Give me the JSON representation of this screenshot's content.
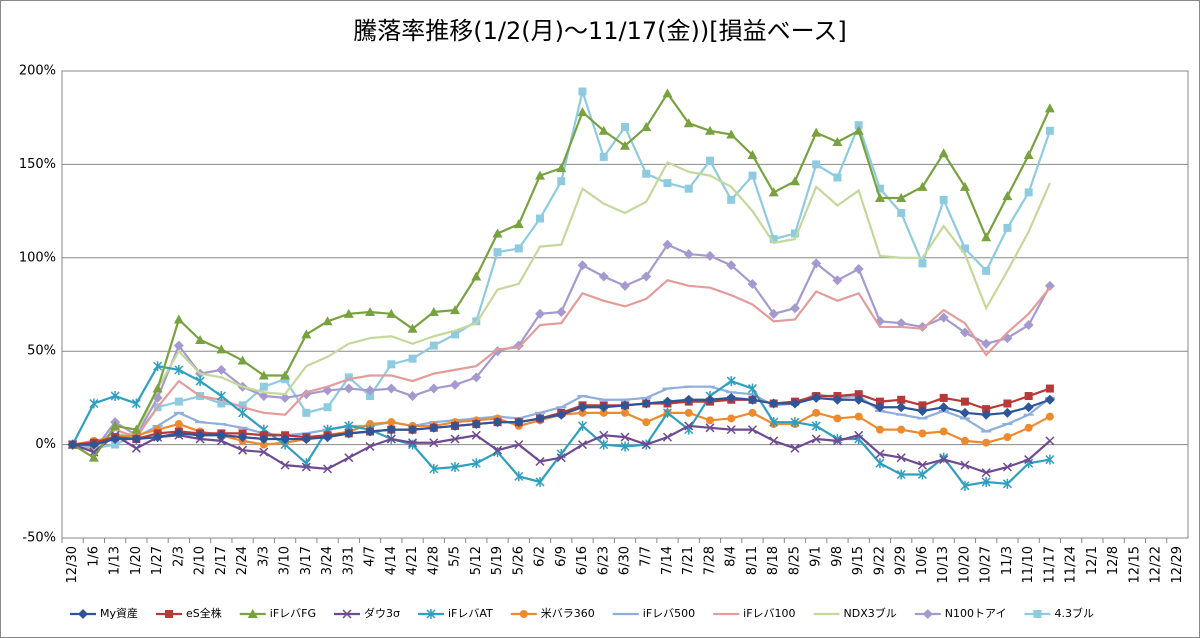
{
  "chart_data": {
    "type": "line",
    "title": "騰落率推移(1/2(月)～11/17(金))[損益ベース]",
    "categories": [
      "12/30",
      "1/6",
      "1/13",
      "1/20",
      "1/27",
      "2/3",
      "2/10",
      "2/17",
      "2/24",
      "3/3",
      "3/10",
      "3/17",
      "3/24",
      "3/31",
      "4/7",
      "4/14",
      "4/21",
      "4/28",
      "5/5",
      "5/12",
      "5/19",
      "5/26",
      "6/2",
      "6/9",
      "6/16",
      "6/23",
      "6/30",
      "7/7",
      "7/14",
      "7/21",
      "7/28",
      "8/4",
      "8/11",
      "8/18",
      "8/25",
      "9/1",
      "9/8",
      "9/15",
      "9/22",
      "9/29",
      "10/6",
      "10/13",
      "10/20",
      "10/27",
      "11/3",
      "11/10",
      "11/17",
      "11/24",
      "12/1",
      "12/8",
      "12/15",
      "12/22",
      "12/29"
    ],
    "ylim": [
      -50,
      200
    ],
    "yticks": [
      {
        "value": -50,
        "label": "-50%"
      },
      {
        "value": 0,
        "label": "0%"
      },
      {
        "value": 50,
        "label": "50%"
      },
      {
        "value": 100,
        "label": "100%"
      },
      {
        "value": 150,
        "label": "150%"
      },
      {
        "value": 200,
        "label": "200%"
      }
    ],
    "grid": true,
    "legend": "bottom",
    "series": [
      {
        "name": "My資産",
        "color": "#2e5597",
        "marker": "diamond",
        "values": [
          0,
          0,
          3,
          3,
          4,
          6,
          5,
          5,
          4,
          3,
          3,
          3,
          4,
          6,
          7,
          8,
          8,
          9,
          10,
          11,
          12,
          12,
          14,
          16,
          20,
          20,
          21,
          22,
          23,
          24,
          24,
          25,
          24,
          22,
          22,
          25,
          24,
          24,
          20,
          20,
          18,
          20,
          17,
          16,
          17,
          20,
          24,
          null,
          null,
          null,
          null,
          null,
          null
        ]
      },
      {
        "name": "eS全株",
        "color": "#b8393a",
        "marker": "square",
        "values": [
          0,
          1,
          4,
          3,
          6,
          7,
          6,
          6,
          6,
          5,
          5,
          4,
          5,
          6,
          7,
          8,
          8,
          9,
          10,
          11,
          12,
          12,
          14,
          17,
          21,
          21,
          21,
          22,
          22,
          23,
          23,
          24,
          24,
          22,
          23,
          26,
          26,
          27,
          23,
          24,
          21,
          25,
          23,
          19,
          22,
          26,
          30,
          null,
          null,
          null,
          null,
          null,
          null
        ]
      },
      {
        "name": "iFレバFG",
        "color": "#78a23f",
        "marker": "triangle",
        "values": [
          0,
          -7,
          10,
          8,
          30,
          67,
          56,
          51,
          45,
          37,
          37,
          59,
          66,
          70,
          71,
          70,
          62,
          71,
          72,
          90,
          113,
          118,
          144,
          148,
          178,
          168,
          160,
          170,
          188,
          172,
          168,
          166,
          155,
          135,
          141,
          167,
          162,
          168,
          132,
          132,
          138,
          156,
          138,
          111,
          133,
          155,
          180,
          null,
          null,
          null,
          null,
          null,
          null
        ]
      },
      {
        "name": "ダウ3σ",
        "color": "#6e4a93",
        "marker": "x",
        "values": [
          0,
          -4,
          5,
          -2,
          4,
          5,
          3,
          2,
          -3,
          -4,
          -11,
          -12,
          -13,
          -7,
          -1,
          3,
          1,
          1,
          3,
          5,
          -3,
          0,
          -9,
          -7,
          0,
          5,
          4,
          0,
          4,
          10,
          9,
          8,
          8,
          2,
          -2,
          3,
          2,
          5,
          -5,
          -7,
          -11,
          -8,
          -11,
          -15,
          -12,
          -8,
          2,
          null,
          null,
          null,
          null,
          null,
          null
        ]
      },
      {
        "name": "iFレバAT",
        "color": "#2f9fbf",
        "marker": "star",
        "values": [
          0,
          22,
          26,
          22,
          42,
          40,
          34,
          26,
          17,
          8,
          0,
          -10,
          8,
          10,
          8,
          3,
          0,
          -13,
          -12,
          -10,
          -4,
          -17,
          -20,
          -5,
          10,
          0,
          -1,
          0,
          17,
          8,
          26,
          34,
          30,
          12,
          12,
          10,
          3,
          3,
          -10,
          -16,
          -16,
          -7,
          -22,
          -20,
          -21,
          -10,
          -8,
          null,
          null,
          null,
          null,
          null,
          null
        ]
      },
      {
        "name": "米バラ360",
        "color": "#ee8a2e",
        "marker": "circle",
        "values": [
          0,
          2,
          4,
          5,
          8,
          11,
          7,
          5,
          2,
          0,
          1,
          3,
          5,
          7,
          11,
          12,
          10,
          10,
          12,
          13,
          14,
          10,
          13,
          16,
          17,
          17,
          17,
          12,
          17,
          17,
          13,
          14,
          17,
          11,
          11,
          17,
          14,
          15,
          8,
          8,
          6,
          7,
          2,
          1,
          4,
          9,
          15,
          null,
          null,
          null,
          null,
          null,
          null
        ]
      },
      {
        "name": "iFレバ500",
        "color": "#8eaedd",
        "marker": "dash",
        "values": [
          0,
          -1,
          5,
          4,
          10,
          17,
          12,
          11,
          9,
          6,
          5,
          6,
          8,
          10,
          10,
          12,
          10,
          12,
          13,
          14,
          15,
          14,
          17,
          20,
          26,
          24,
          24,
          25,
          30,
          31,
          31,
          28,
          27,
          21,
          22,
          27,
          25,
          26,
          18,
          16,
          14,
          18,
          14,
          7,
          11,
          16,
          25,
          null,
          null,
          null,
          null,
          null,
          null
        ]
      },
      {
        "name": "iFレバ100",
        "color": "#e39c9a",
        "marker": "none",
        "values": [
          0,
          -2,
          8,
          4,
          20,
          34,
          26,
          24,
          20,
          17,
          16,
          28,
          31,
          35,
          37,
          37,
          34,
          38,
          40,
          42,
          51,
          52,
          64,
          65,
          81,
          77,
          74,
          78,
          88,
          85,
          84,
          80,
          75,
          66,
          67,
          82,
          77,
          81,
          63,
          63,
          62,
          72,
          65,
          48,
          60,
          70,
          84,
          null,
          null,
          null,
          null,
          null,
          null
        ]
      },
      {
        "name": "NDX3ブル",
        "color": "#c3d99b",
        "marker": "none",
        "values": [
          0,
          -3,
          5,
          6,
          30,
          50,
          38,
          36,
          31,
          28,
          27,
          42,
          47,
          54,
          57,
          58,
          54,
          58,
          61,
          65,
          83,
          86,
          106,
          107,
          137,
          129,
          124,
          130,
          151,
          146,
          144,
          138,
          125,
          108,
          110,
          138,
          128,
          136,
          101,
          100,
          100,
          117,
          102,
          73,
          93,
          114,
          140,
          null,
          null,
          null,
          null,
          null,
          null
        ]
      },
      {
        "name": "N100トアイ",
        "color": "#a699cf",
        "marker": "diamond",
        "values": [
          0,
          -3,
          12,
          5,
          25,
          53,
          38,
          40,
          31,
          26,
          25,
          27,
          29,
          30,
          29,
          30,
          26,
          30,
          32,
          36,
          50,
          53,
          70,
          71,
          96,
          90,
          85,
          90,
          107,
          102,
          101,
          96,
          86,
          70,
          73,
          97,
          88,
          94,
          66,
          65,
          63,
          68,
          60,
          54,
          57,
          64,
          85,
          null,
          null,
          null,
          null,
          null,
          null
        ]
      },
      {
        "name": "4.3ブル",
        "color": "#8fcbe0",
        "marker": "square",
        "values": [
          0,
          -2,
          0,
          5,
          20,
          23,
          26,
          22,
          21,
          31,
          35,
          17,
          20,
          36,
          26,
          43,
          46,
          53,
          59,
          66,
          103,
          105,
          121,
          141,
          189,
          154,
          170,
          145,
          140,
          137,
          152,
          131,
          144,
          110,
          113,
          150,
          143,
          171,
          137,
          124,
          97,
          131,
          105,
          93,
          116,
          135,
          168,
          null,
          null,
          null,
          null,
          null,
          null
        ]
      }
    ]
  }
}
